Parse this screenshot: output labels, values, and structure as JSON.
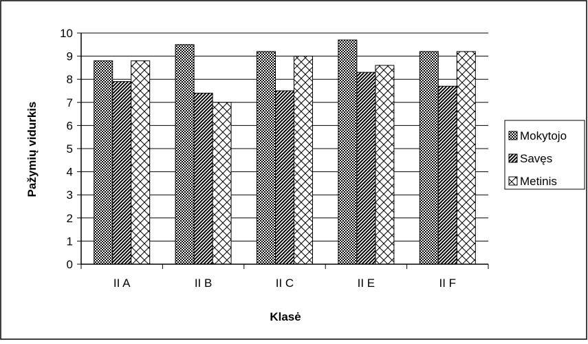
{
  "chart_data": {
    "type": "bar",
    "title": "",
    "xlabel": "Klasė",
    "ylabel": "Pažymių vidurkis",
    "ylim": [
      0,
      10
    ],
    "yticks": [
      0,
      1,
      2,
      3,
      4,
      5,
      6,
      7,
      8,
      9,
      10
    ],
    "grid": true,
    "legend_position": "right",
    "categories": [
      "II A",
      "II B",
      "II C",
      "II E",
      "II F"
    ],
    "series": [
      {
        "name": "Mokytojo",
        "pattern": "checker-dense",
        "values": [
          8.8,
          9.5,
          9.2,
          9.7,
          9.2
        ]
      },
      {
        "name": "Savęs",
        "pattern": "diagonal-hatch",
        "values": [
          7.9,
          7.4,
          7.5,
          8.3,
          7.7
        ]
      },
      {
        "name": "Metinis",
        "pattern": "crosshatch-light",
        "values": [
          8.8,
          7.0,
          9.0,
          8.6,
          9.2
        ]
      }
    ]
  }
}
